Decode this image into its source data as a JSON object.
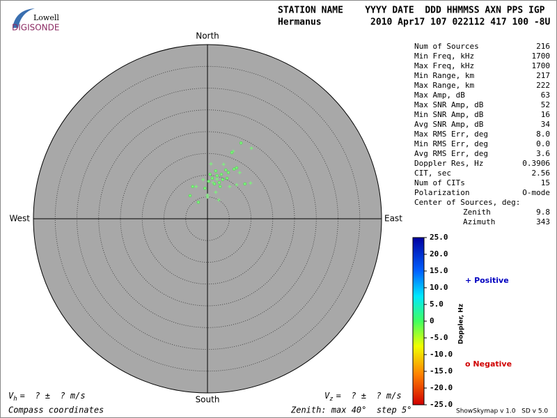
{
  "logo": {
    "top": "Lowell",
    "bottom": "DIGISONDE"
  },
  "header": {
    "labels": "STATION NAME    YYYY DATE  DDD HHMMSS AXN PPS IGP",
    "values": "Hermanus         2010 Apr17 107 022112 417 100 -8U"
  },
  "stats": {
    "rows": [
      [
        "Num of Sources",
        "216"
      ],
      [
        "Min Freq, kHz",
        "1700"
      ],
      [
        "Max Freq, kHz",
        "1700"
      ],
      [
        "Min Range, km",
        "217"
      ],
      [
        "Max Range, km",
        "222"
      ],
      [
        "Max Amp, dB",
        "63"
      ],
      [
        "Max SNR Amp, dB",
        "52"
      ],
      [
        "Min SNR Amp, dB",
        "16"
      ],
      [
        "Avg SNR Amp, dB",
        "34"
      ],
      [
        "Max RMS Err, deg",
        "8.0"
      ],
      [
        "Min RMS Err, deg",
        "0.0"
      ],
      [
        "Avg RMS Err, deg",
        "3.6"
      ],
      [
        "Doppler Res, Hz",
        "0.3906"
      ],
      [
        "CIT, sec",
        "2.56"
      ],
      [
        "Num of CITs",
        "15"
      ],
      [
        "Polarization",
        "O-mode"
      ],
      [
        "Center of Sources, deg:",
        null
      ]
    ],
    "center": [
      [
        "Zenith",
        "9.8"
      ],
      [
        "Azimuth",
        "343"
      ]
    ]
  },
  "colorbar": {
    "label": "Doppler, Hz",
    "clim": [
      -25,
      25
    ],
    "ticks": [
      {
        "value": 25,
        "label": "25.0"
      },
      {
        "value": 20,
        "label": "20.0"
      },
      {
        "value": 15,
        "label": "15.0"
      },
      {
        "value": 10,
        "label": "10.0"
      },
      {
        "value": 5,
        "label": "5.0"
      },
      0,
      {
        "value": -5,
        "label": "-5.0"
      },
      {
        "value": -10,
        "label": "-10.0"
      },
      {
        "value": -15,
        "label": "-15.0"
      },
      {
        "value": -20,
        "label": "-20.0"
      },
      {
        "value": -25,
        "label": "-25.0"
      }
    ]
  },
  "footer": {
    "vh": [
      "V",
      "h",
      "=  ? ±  ? m/s"
    ],
    "vz": [
      "V",
      "z",
      "=  ? ±  ? m/s"
    ],
    "coords": "Compass coordinates",
    "zenith": "Zenith: max 40°  step 5°",
    "version": "ShowSkymap v 1.0   SD v 5.0"
  },
  "chart_data": {
    "type": "polar-scatter",
    "directions": {
      "north": "North",
      "south": "South",
      "east": "East",
      "west": "West"
    },
    "rlim": [
      0,
      40
    ],
    "rticks": [
      5,
      10,
      15,
      20,
      25,
      30,
      35
    ],
    "point_color": "#7ef07e",
    "series": [
      {
        "name": "Positive",
        "color": "#0000c0",
        "marker": "+",
        "x": [
          0.8,
          5.9,
          10.1,
          7.4,
          9.9,
          2.6,
          0,
          -2.6,
          -1,
          1.9,
          5.1,
          6.7,
          3.7,
          2.2,
          0,
          1.3
        ],
        "y": [
          12.6,
          15.5,
          16.2,
          10.6,
          8.2,
          4.3,
          5,
          7.4,
          9,
          6.1,
          7.4,
          7.8,
          12.5,
          9.1,
          5.4,
          8.3
        ]
      },
      {
        "name": "Negative",
        "color": "#d00000",
        "marker": "o",
        "x": [
          7.7,
          5.6,
          6.7,
          4.2,
          3.2,
          2.2,
          1.1,
          0.3,
          3.5,
          2.7,
          1.6,
          4.8,
          8.6,
          -2.1,
          -4,
          -3.4,
          -0.6,
          0.6,
          1.9,
          6.1,
          4.5,
          2.9
        ],
        "y": [
          17.4,
          15.2,
          11.7,
          11.2,
          10.2,
          9.9,
          9.3,
          8.6,
          9,
          8.3,
          8,
          10.6,
          8,
          3.8,
          5.3,
          7.4,
          7,
          10.2,
          11,
          11.4,
          9.3,
          7.4
        ]
      }
    ]
  }
}
